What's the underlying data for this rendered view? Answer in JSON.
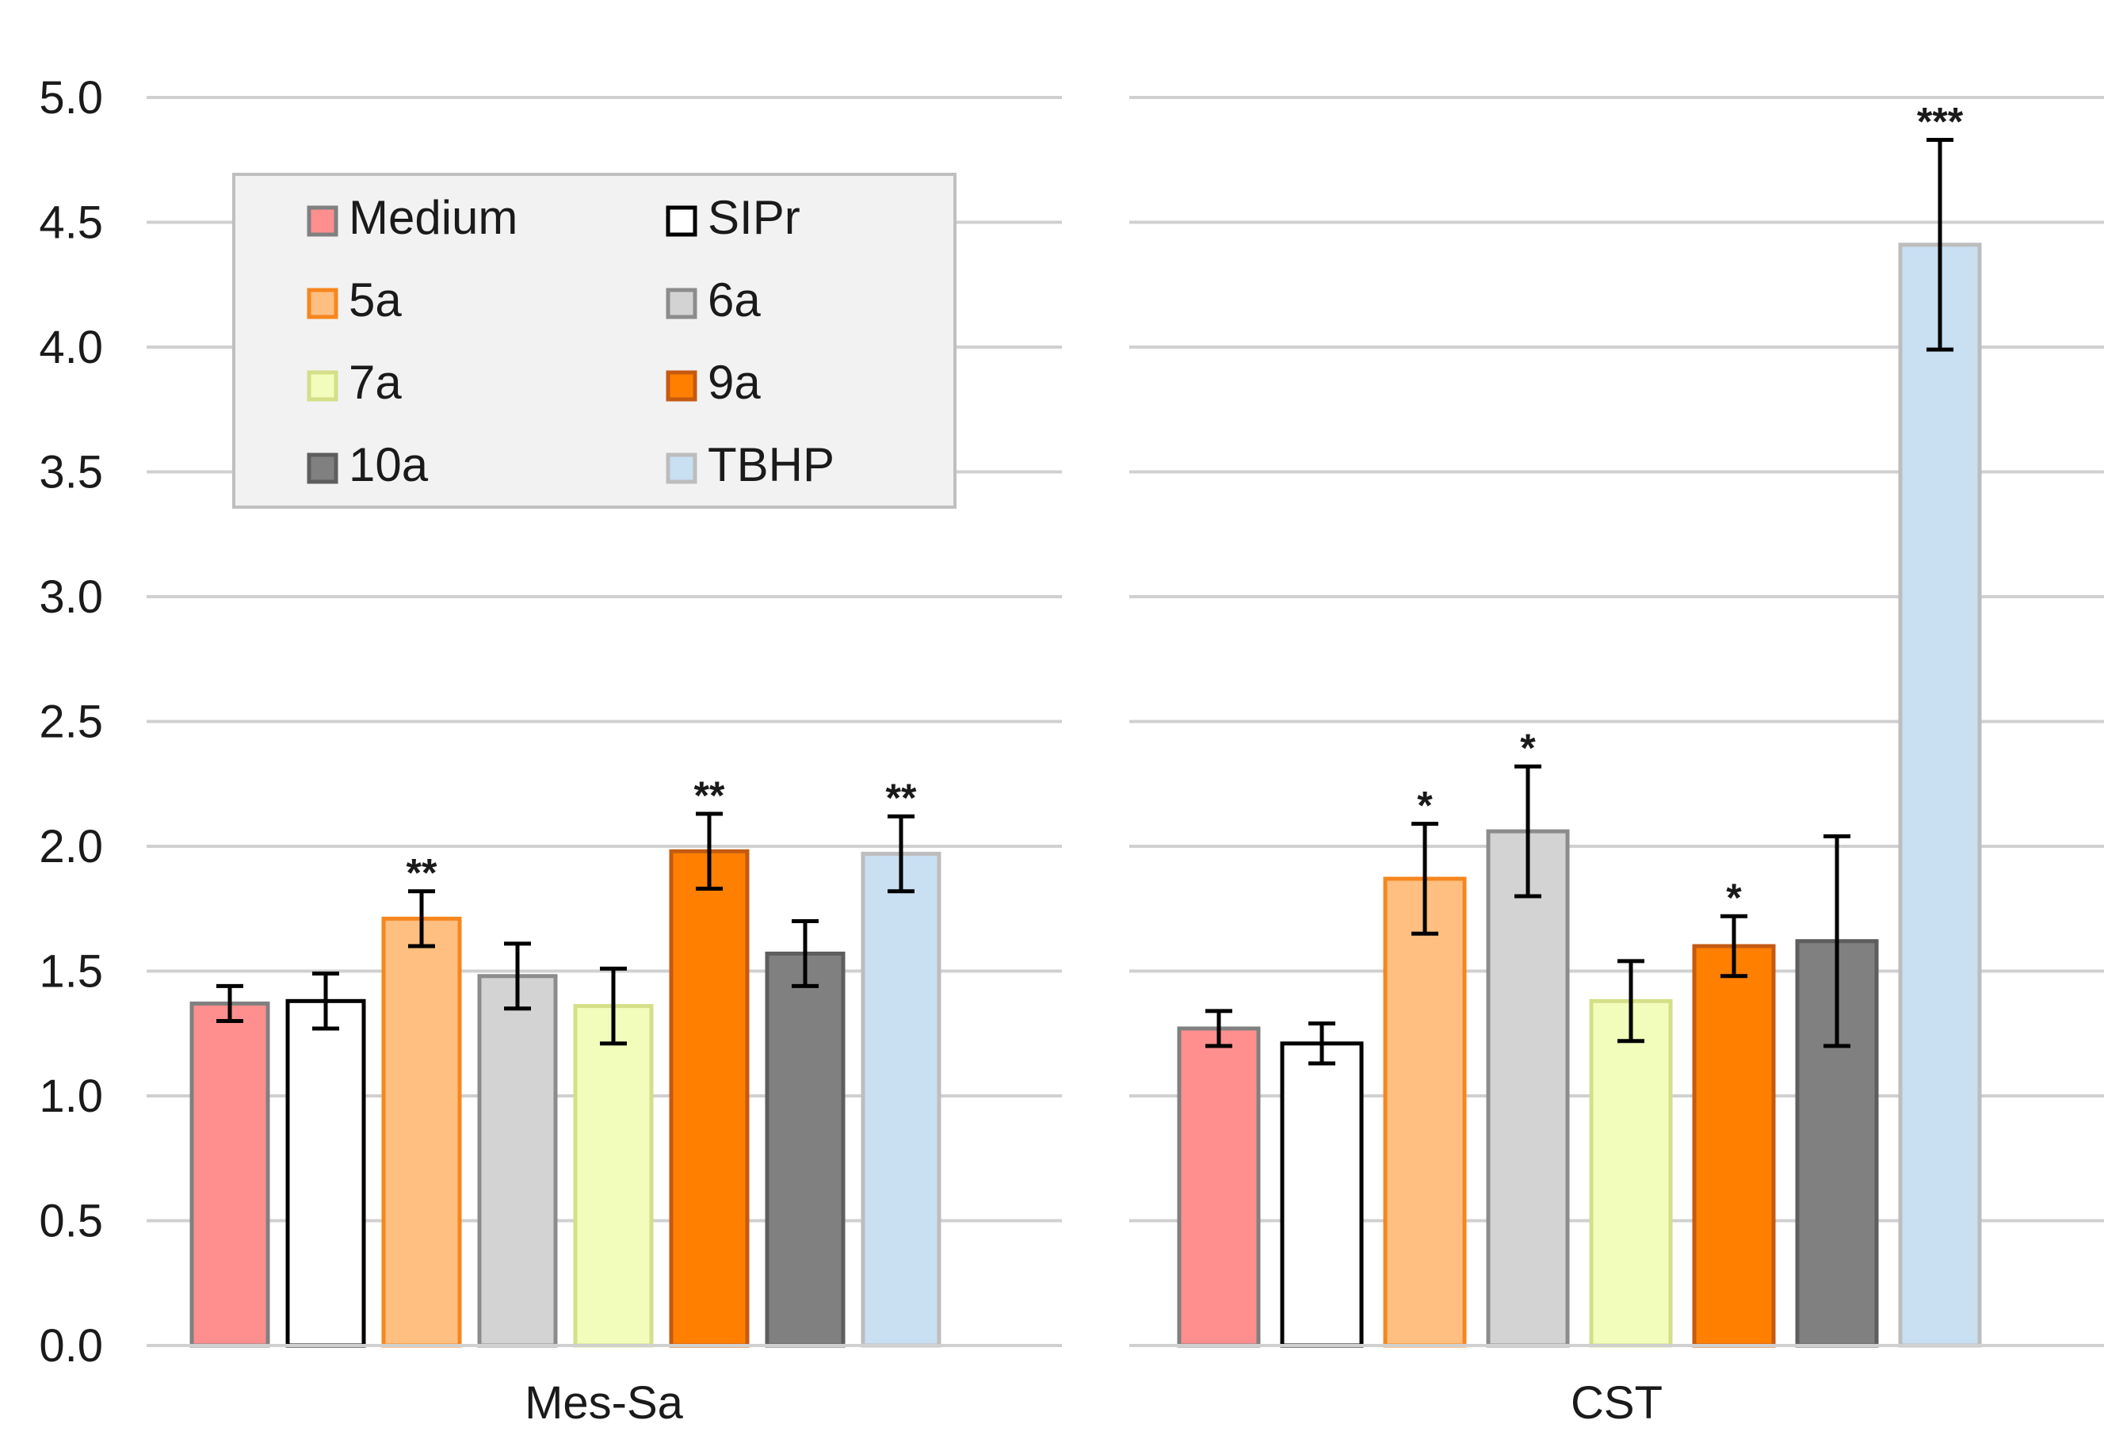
{
  "chart_data": {
    "type": "bar",
    "title": "",
    "xlabel": "",
    "ylabel": "",
    "ylim": [
      0,
      5
    ],
    "yticks": [
      "0.0",
      "0.5",
      "1.0",
      "1.5",
      "2.0",
      "2.5",
      "3.0",
      "3.5",
      "4.0",
      "4.5",
      "5.0"
    ],
    "grid": true,
    "legend_position": "top-left",
    "categories": [
      "Mes-Sa",
      "CST"
    ],
    "series": [
      {
        "name": "Medium",
        "color": "#ff8f8f",
        "edge": "#808080",
        "values": [
          1.37,
          1.27
        ],
        "errors": [
          0.07,
          0.07
        ],
        "sig": [
          "",
          ""
        ]
      },
      {
        "name": "SIPr",
        "color": "#ffffff",
        "edge": "#000000",
        "values": [
          1.38,
          1.21
        ],
        "errors": [
          0.11,
          0.08
        ],
        "sig": [
          "",
          ""
        ]
      },
      {
        "name": "5a",
        "color": "#ffbf80",
        "edge": "#f7861e",
        "values": [
          1.71,
          1.87
        ],
        "errors": [
          0.11,
          0.22
        ],
        "sig": [
          "**",
          "*"
        ]
      },
      {
        "name": "6a",
        "color": "#d3d3d3",
        "edge": "#8c8c8c",
        "values": [
          1.48,
          2.06
        ],
        "errors": [
          0.13,
          0.26
        ],
        "sig": [
          "",
          "*"
        ]
      },
      {
        "name": "7a",
        "color": "#f2fdbb",
        "edge": "#d4df88",
        "values": [
          1.36,
          1.38
        ],
        "errors": [
          0.15,
          0.16
        ],
        "sig": [
          "",
          ""
        ]
      },
      {
        "name": "9a",
        "color": "#ff7f00",
        "edge": "#c55a11",
        "values": [
          1.98,
          1.6
        ],
        "errors": [
          0.15,
          0.12
        ],
        "sig": [
          "**",
          "*"
        ]
      },
      {
        "name": "10a",
        "color": "#808080",
        "edge": "#5e5e5e",
        "values": [
          1.57,
          1.62
        ],
        "errors": [
          0.13,
          0.42
        ],
        "sig": [
          "",
          ""
        ]
      },
      {
        "name": "TBHP",
        "color": "#c9dff2",
        "edge": "#bdbdbd",
        "values": [
          1.97,
          4.41
        ],
        "errors": [
          0.15,
          0.42
        ],
        "sig": [
          "**",
          "***"
        ]
      }
    ]
  }
}
